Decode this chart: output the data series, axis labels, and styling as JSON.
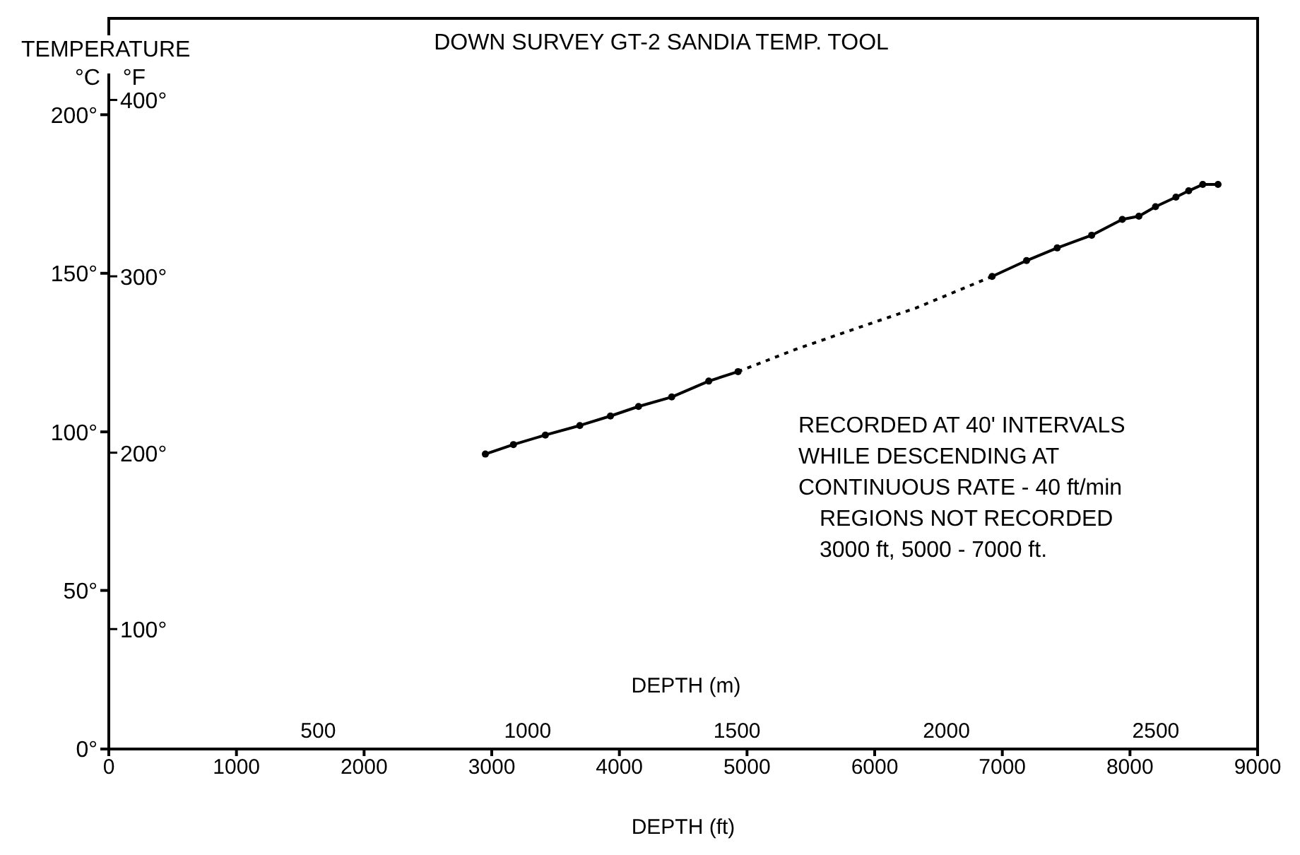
{
  "chart_data": {
    "type": "line",
    "title": "DOWN SURVEY GT-2 SANDIA TEMP. TOOL",
    "xlabel": "DEPTH (ft)",
    "x2label": "DEPTH (m)",
    "ylabel": "°C",
    "y2label": "°F",
    "annotations": [
      "TEMPERATURE",
      "RECORDED AT 40' INTERVALS\nWHILE DESCENDING AT\nCONTINUOUS RATE - 40 ft/min",
      "REGIONS NOT RECORDED\n3000 ft, 5000 - 7000 ft."
    ],
    "series": [
      {
        "color": "#000000",
        "marker": "circle",
        "line_style": "solid",
        "x": [
          2950,
          3170,
          3420,
          3690,
          3930,
          4150,
          4410,
          4700,
          4930
        ],
        "values": [
          93,
          96,
          99,
          102,
          105,
          108,
          111,
          116,
          119
        ]
      },
      {
        "color": "#000000",
        "marker": "none",
        "line_style": "dotted",
        "x": [
          4930,
          5380,
          5810,
          6320,
          6920
        ],
        "values": [
          119,
          126,
          132,
          139,
          149
        ]
      },
      {
        "color": "#000000",
        "marker": "circle",
        "line_style": "solid",
        "x": [
          6920,
          7190,
          7430,
          7700,
          7940,
          8070,
          8200,
          8360,
          8460,
          8570,
          8690
        ],
        "values": [
          149,
          154,
          158,
          162,
          167,
          168,
          171,
          174,
          176,
          178,
          178
        ]
      }
    ],
    "xlim": [
      0,
      9000
    ],
    "xticks": [
      0,
      1000,
      2000,
      3000,
      4000,
      5000,
      6000,
      7000,
      8000,
      9000
    ],
    "x2lim": [
      0,
      2743
    ],
    "x2ticks": [
      500,
      1000,
      1500,
      2000,
      2500
    ],
    "ylim": [
      0,
      213
    ],
    "yticks": [
      {
        "value": 0,
        "label": "0°"
      },
      {
        "value": 50,
        "label": "50°"
      },
      {
        "value": 100,
        "label": "100°"
      },
      {
        "value": 150,
        "label": "150°"
      },
      {
        "value": 200,
        "label": "200°"
      }
    ],
    "y2lim": [
      32,
      415
    ],
    "y2ticks": [
      {
        "value": 100,
        "label": "100°"
      },
      {
        "value": 200,
        "label": "200°"
      },
      {
        "value": 300,
        "label": "300°"
      },
      {
        "value": 400,
        "label": "400°"
      }
    ]
  }
}
